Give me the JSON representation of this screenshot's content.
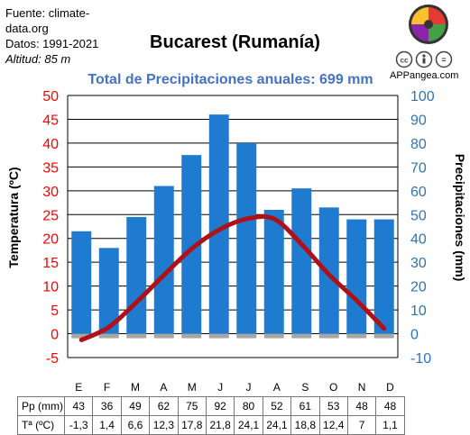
{
  "source": {
    "line1": "Fuente: climate-",
    "line2": "data.org",
    "line3": "Datos: 1991-2021",
    "line4": "Altitud: 85 m"
  },
  "brand": "APPangea.com",
  "colors": {
    "bar": "#1f7bd0",
    "temp_line": "#b01018",
    "temp_axis": "#ff0000",
    "precip_axis": "#2e75b6",
    "subtitle": "#4472c4",
    "grid": "#000000"
  },
  "chart_data": {
    "type": "bar",
    "title": "Bucarest (Rumanía)",
    "subtitle": "Total de Precipitaciones anuales: 699 mm",
    "categories": [
      "E",
      "F",
      "M",
      "A",
      "M",
      "J",
      "J",
      "A",
      "S",
      "O",
      "N",
      "D"
    ],
    "series": [
      {
        "name": "Pp (mm)",
        "type": "bar",
        "axis": "right",
        "values": [
          43,
          36,
          49,
          62,
          75,
          92,
          80,
          52,
          61,
          53,
          48,
          48
        ]
      },
      {
        "name": "Tª (ºC)",
        "type": "line",
        "axis": "left",
        "values": [
          -1.3,
          1.4,
          6.6,
          12.3,
          17.8,
          21.8,
          24.1,
          24.1,
          18.8,
          12.4,
          7,
          1.1
        ]
      }
    ],
    "y_left": {
      "label": "Temperatura (ºC)",
      "range": [
        -5,
        50
      ],
      "ticks": [
        "-5",
        "0",
        "5",
        "10",
        "15",
        "20",
        "25",
        "30",
        "35",
        "40",
        "45",
        "50"
      ]
    },
    "y_right": {
      "label": "Precipitaciones (mm)",
      "range": [
        -10,
        100
      ],
      "ticks": [
        "-10",
        "0",
        "10",
        "20",
        "30",
        "40",
        "50",
        "60",
        "70",
        "80",
        "90",
        "100"
      ]
    },
    "grid": true
  },
  "table": {
    "pp_label": "Pp (mm)",
    "t_label": "Tª (ºC)",
    "pp": [
      "43",
      "36",
      "49",
      "62",
      "75",
      "92",
      "80",
      "52",
      "61",
      "53",
      "48",
      "48"
    ],
    "t": [
      "-1,3",
      "1,4",
      "6,6",
      "12,3",
      "17,8",
      "21,8",
      "24,1",
      "24,1",
      "18,8",
      "12,4",
      "7",
      "1,1"
    ]
  }
}
